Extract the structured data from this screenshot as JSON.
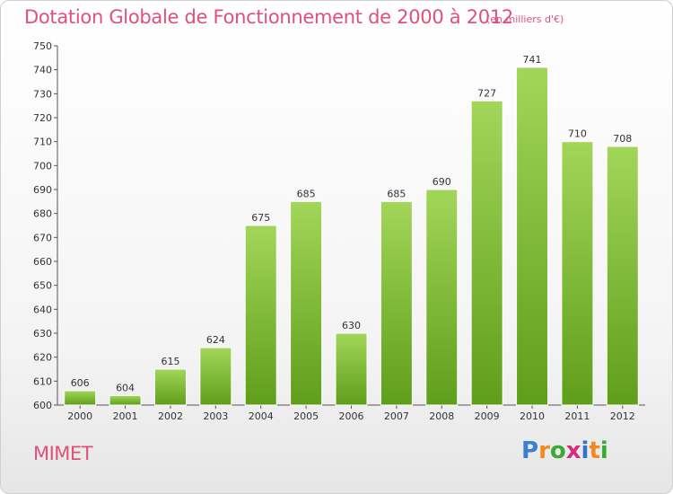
{
  "chart_data": {
    "type": "bar",
    "title": "Dotation Globale de Fonctionnement de 2000 à 2012",
    "subtitle": "(en milliers d'€)",
    "categories": [
      "2000",
      "2001",
      "2002",
      "2003",
      "2004",
      "2005",
      "2006",
      "2007",
      "2008",
      "2009",
      "2010",
      "2011",
      "2012"
    ],
    "values": [
      606,
      604,
      615,
      624,
      675,
      685,
      630,
      685,
      690,
      727,
      741,
      710,
      708
    ],
    "value_labels": [
      "606",
      "604",
      "615",
      "624",
      "675",
      "685",
      "630",
      "685",
      "690",
      "727",
      "741",
      "710",
      "708"
    ],
    "ylim": [
      600,
      750
    ],
    "yticks": [
      "600",
      "610",
      "620",
      "630",
      "640",
      "650",
      "660",
      "670",
      "680",
      "690",
      "700",
      "710",
      "720",
      "730",
      "740",
      "750"
    ],
    "grid": false,
    "bar_color": "#7fba2e"
  },
  "commune": "MIMET",
  "logo": {
    "text": "Proxiti",
    "colors": [
      "#3b7fd1",
      "#f08a1c",
      "#3aaa35",
      "#d62a7a",
      "#2f74c9",
      "#f08a1c",
      "#3aaa35"
    ]
  }
}
